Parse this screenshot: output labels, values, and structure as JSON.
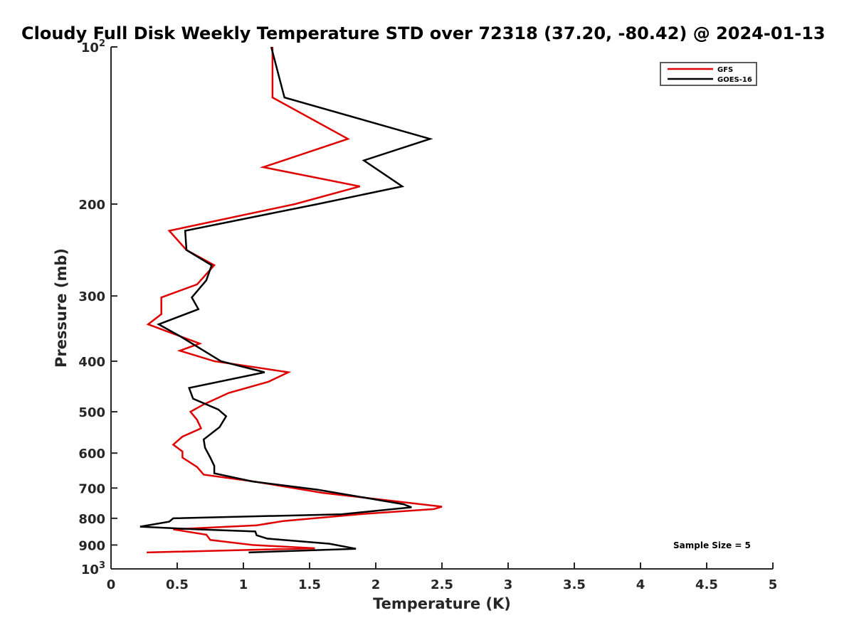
{
  "chart_data": {
    "type": "line",
    "title": "Cloudy Full Disk Weekly Temperature STD over 72318 (37.20, -80.42) @ 2024-01-13",
    "xlabel": "Temperature (K)",
    "ylabel": "Pressure (mb)",
    "xlim": [
      0,
      5
    ],
    "ylim": [
      1000,
      100
    ],
    "yscale": "log",
    "x_ticks": [
      0,
      0.5,
      1,
      1.5,
      2,
      2.5,
      3,
      3.5,
      4,
      4.5,
      5
    ],
    "x_tick_labels": [
      "0",
      "0.5",
      "1",
      "1.5",
      "2",
      "2.5",
      "3",
      "3.5",
      "4",
      "4.5",
      "5"
    ],
    "y_ticks": [
      100,
      200,
      300,
      400,
      500,
      600,
      700,
      800,
      900,
      1000
    ],
    "y_tick_labels": [
      {
        "base": "10",
        "exp": "2"
      },
      {
        "base": "200",
        "exp": ""
      },
      {
        "base": "300",
        "exp": ""
      },
      {
        "base": "400",
        "exp": ""
      },
      {
        "base": "500",
        "exp": ""
      },
      {
        "base": "600",
        "exp": ""
      },
      {
        "base": "700",
        "exp": ""
      },
      {
        "base": "800",
        "exp": ""
      },
      {
        "base": "900",
        "exp": ""
      },
      {
        "base": "10",
        "exp": "3"
      }
    ],
    "grid": false,
    "legend_position": "top-right",
    "annotation": "Sample Size = 5",
    "series": [
      {
        "name": "GFS",
        "color": "#e00000",
        "points": [
          [
            1.22,
            100
          ],
          [
            1.22,
            125
          ],
          [
            1.79,
            150
          ],
          [
            1.15,
            170
          ],
          [
            1.88,
            185
          ],
          [
            1.39,
            200
          ],
          [
            0.44,
            225
          ],
          [
            0.57,
            245
          ],
          [
            0.78,
            262
          ],
          [
            0.65,
            285
          ],
          [
            0.38,
            302
          ],
          [
            0.38,
            325
          ],
          [
            0.28,
            340
          ],
          [
            0.67,
            370
          ],
          [
            0.52,
            382
          ],
          [
            0.78,
            400
          ],
          [
            1.34,
            420
          ],
          [
            1.19,
            438
          ],
          [
            0.89,
            460
          ],
          [
            0.7,
            484
          ],
          [
            0.6,
            500
          ],
          [
            0.65,
            518
          ],
          [
            0.68,
            538
          ],
          [
            0.54,
            558
          ],
          [
            0.47,
            578
          ],
          [
            0.54,
            596
          ],
          [
            0.54,
            612
          ],
          [
            0.65,
            638
          ],
          [
            0.7,
            660
          ],
          [
            1.08,
            680
          ],
          [
            1.6,
            715
          ],
          [
            2.5,
            760
          ],
          [
            2.44,
            768
          ],
          [
            1.87,
            786
          ],
          [
            1.3,
            810
          ],
          [
            1.1,
            825
          ],
          [
            0.47,
            840
          ],
          [
            0.72,
            860
          ],
          [
            0.75,
            880
          ],
          [
            1.07,
            900
          ],
          [
            1.54,
            913
          ],
          [
            0.27,
            930
          ]
        ]
      },
      {
        "name": "GOES-16",
        "color": "#000000",
        "points": [
          [
            1.21,
            100
          ],
          [
            1.31,
            125
          ],
          [
            2.41,
            150
          ],
          [
            1.91,
            165
          ],
          [
            2.2,
            185
          ],
          [
            1.56,
            200
          ],
          [
            0.56,
            225
          ],
          [
            0.57,
            245
          ],
          [
            0.76,
            262
          ],
          [
            0.72,
            280
          ],
          [
            0.61,
            302
          ],
          [
            0.66,
            318
          ],
          [
            0.36,
            340
          ],
          [
            0.52,
            358
          ],
          [
            0.83,
            400
          ],
          [
            1.16,
            420
          ],
          [
            0.59,
            450
          ],
          [
            0.62,
            472
          ],
          [
            0.81,
            495
          ],
          [
            0.87,
            510
          ],
          [
            0.82,
            535
          ],
          [
            0.7,
            565
          ],
          [
            0.71,
            586
          ],
          [
            0.75,
            612
          ],
          [
            0.78,
            635
          ],
          [
            0.78,
            656
          ],
          [
            1.07,
            680
          ],
          [
            1.56,
            705
          ],
          [
            2.21,
            752
          ],
          [
            2.27,
            762
          ],
          [
            1.74,
            786
          ],
          [
            0.47,
            800
          ],
          [
            0.44,
            812
          ],
          [
            0.22,
            830
          ],
          [
            0.65,
            840
          ],
          [
            1.09,
            848
          ],
          [
            1.1,
            862
          ],
          [
            1.18,
            875
          ],
          [
            1.65,
            895
          ],
          [
            1.85,
            915
          ],
          [
            1.04,
            930
          ]
        ]
      }
    ]
  }
}
